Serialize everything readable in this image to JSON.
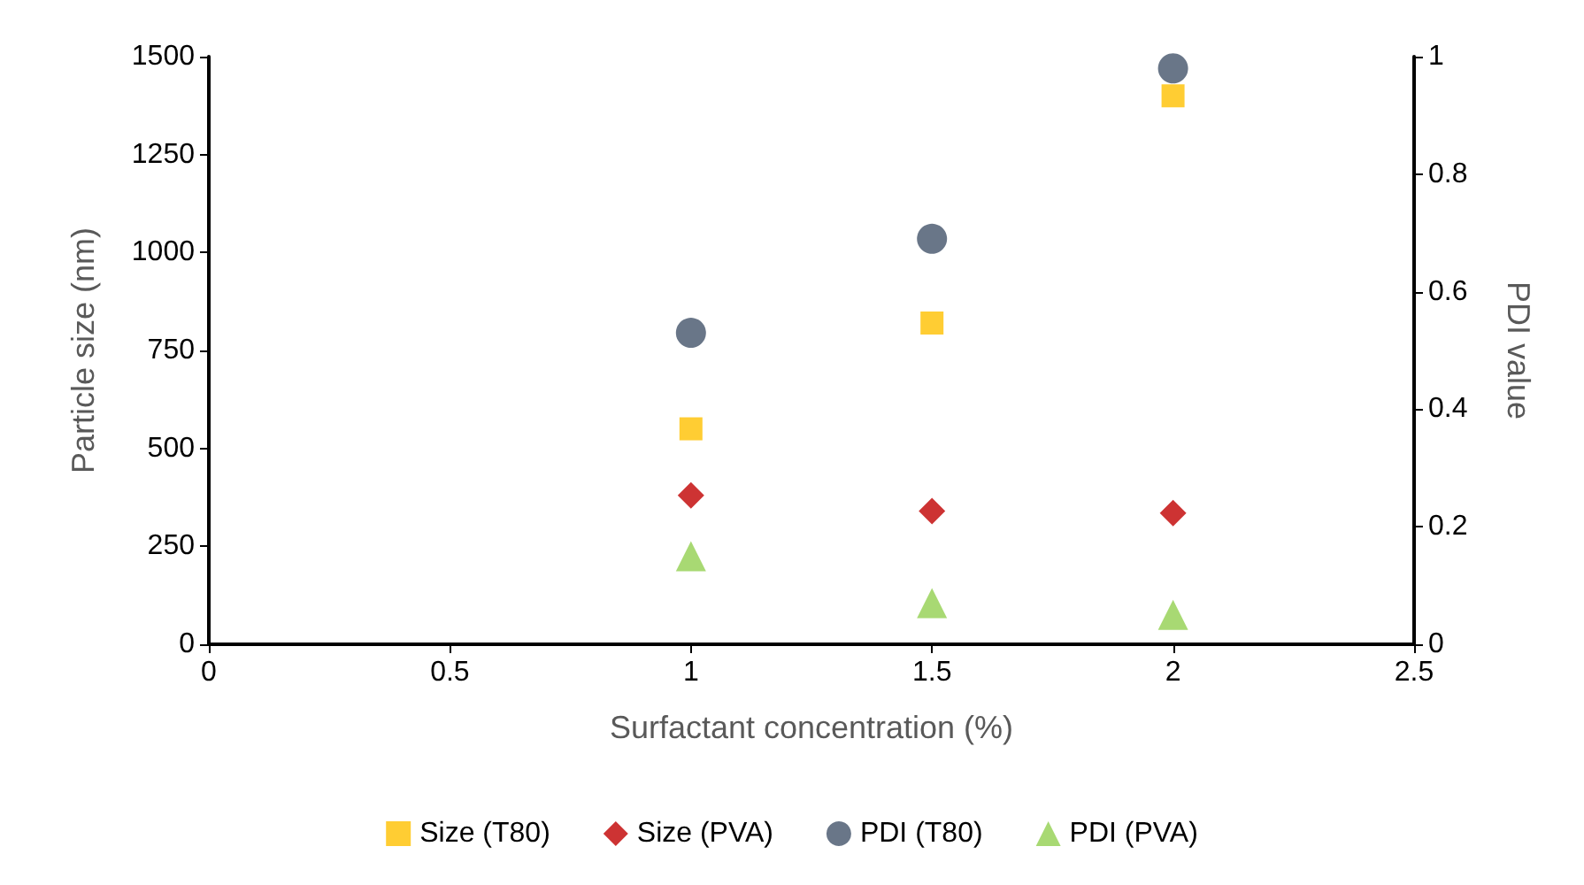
{
  "chart_data": {
    "type": "scatter",
    "xlabel": "Surfactant concentration (%)",
    "ylabel": "Particle size (nm)",
    "y2label": "PDI value",
    "x": [
      1,
      1.5,
      2
    ],
    "series": [
      {
        "name": "Size (T80)",
        "color": "#ffc000",
        "marker": "square",
        "values": [
          550,
          820,
          1400
        ]
      },
      {
        "name": "Size (PVA)",
        "color": "#c00000",
        "marker": "diamond",
        "values": [
          380,
          340,
          335
        ]
      },
      {
        "name": "PDI (T80)",
        "color": "#44546a",
        "marker": "circle",
        "axis": "y2",
        "values": [
          0.53,
          0.69,
          0.98
        ]
      },
      {
        "name": "PDI (PVA)",
        "color": "#92d050",
        "marker": "triangle",
        "axis": "y2",
        "values": [
          0.15,
          0.07,
          0.05
        ]
      }
    ],
    "xlim": [
      0,
      2.5
    ],
    "xticks": [
      0,
      0.5,
      1,
      1.5,
      2,
      2.5
    ],
    "ylim": [
      0,
      1500
    ],
    "yticks": [
      0,
      250,
      500,
      750,
      1000,
      1250,
      1500
    ],
    "y2lim": [
      0,
      1
    ],
    "y2ticks": [
      0,
      0.2,
      0.4,
      0.6,
      0.8,
      1
    ],
    "grid": false,
    "legend": "bottom"
  }
}
